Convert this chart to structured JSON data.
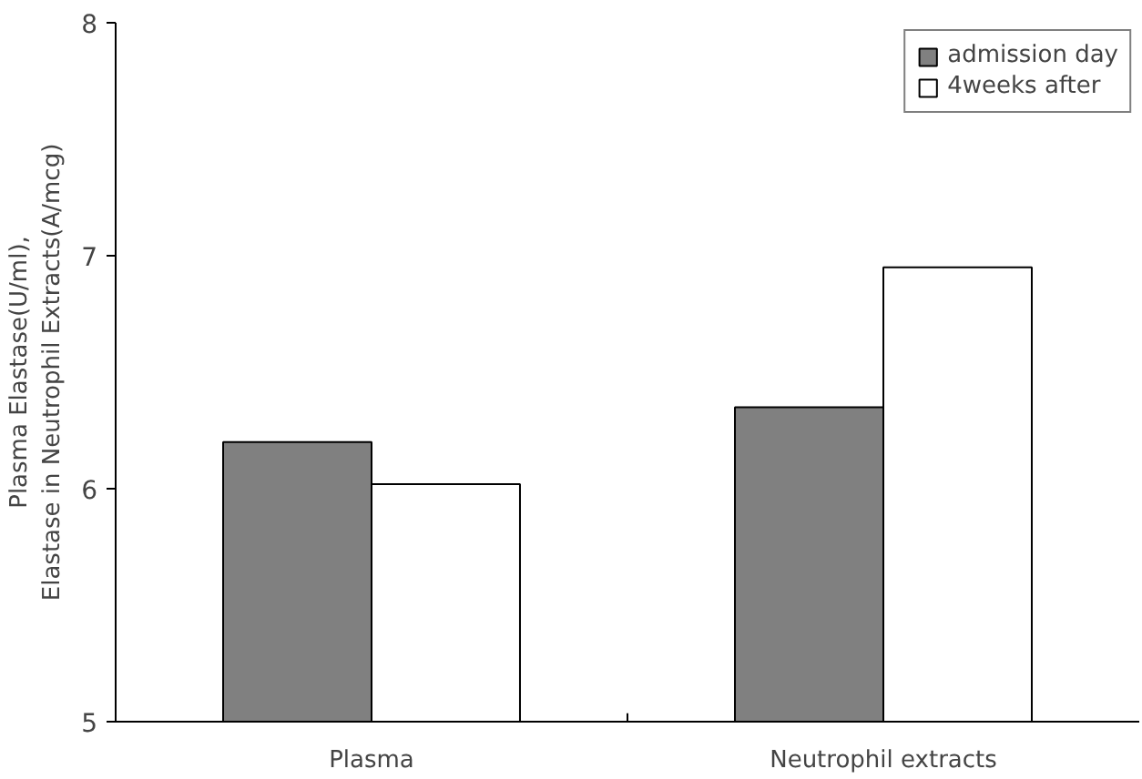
{
  "chart_data": {
    "type": "bar",
    "ylabel": "Plasma Elastase(U/ml),\nElastase in Neutrophil Extracts(A/mcg)",
    "categories": [
      "Plasma",
      "Neutrophil extracts"
    ],
    "series": [
      {
        "name": "admission day",
        "color": "#808080",
        "values": [
          6.2,
          6.35
        ]
      },
      {
        "name": "4weeks after",
        "color": "#ffffff",
        "values": [
          6.02,
          6.95
        ]
      }
    ],
    "ylim": [
      5,
      8
    ],
    "yticks": [
      5,
      6,
      7,
      8
    ],
    "grid": false,
    "legend": "top right"
  }
}
